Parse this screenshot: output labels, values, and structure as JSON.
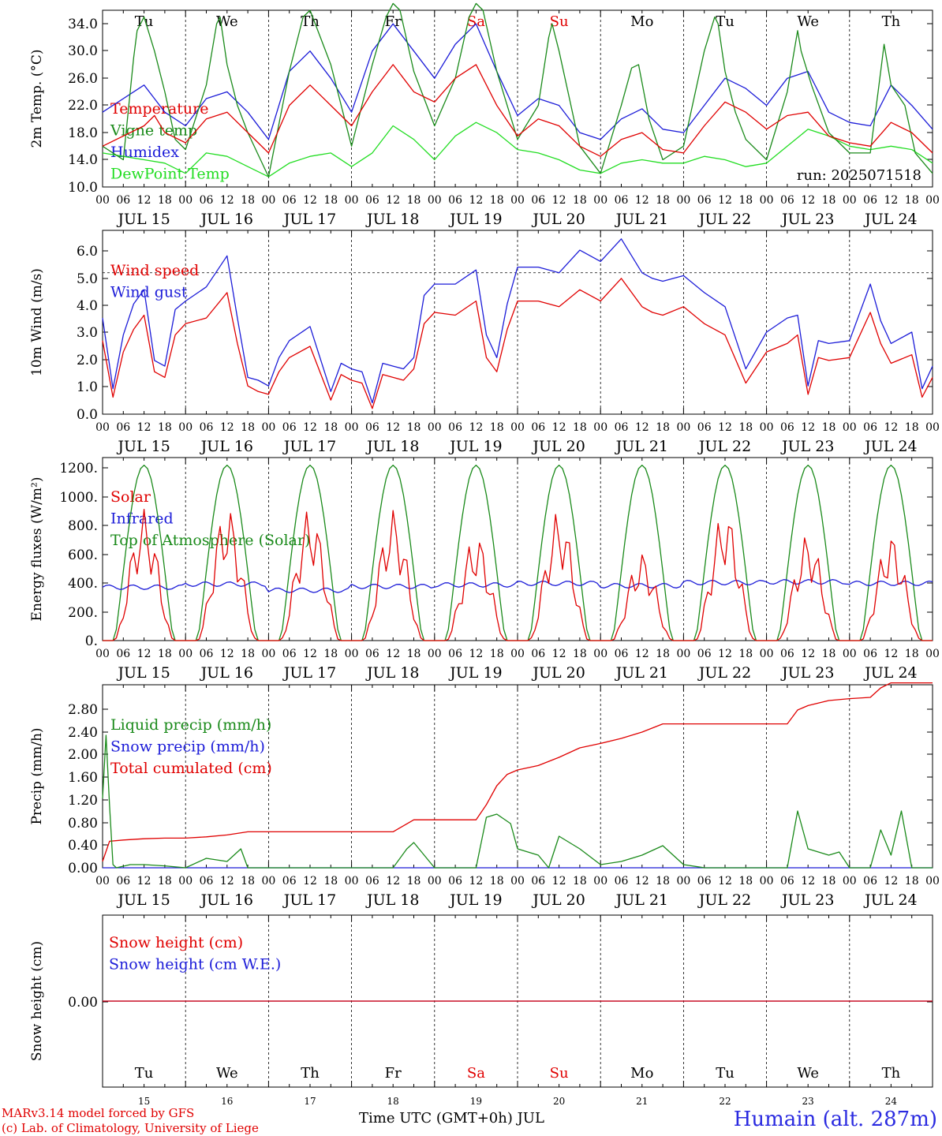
{
  "colors": {
    "red": "#e00000",
    "green": "#1a8a1a",
    "blue": "#1c1cd8",
    "lightgreen": "#22dd22",
    "station": "#2a2ae0",
    "weekend": "#e00000"
  },
  "footer": {
    "credit_line1": "MARv3.14 model forced by GFS",
    "credit_line2": "(c) Lab. of Climatology, University of Liege",
    "xaxis_title": "Time UTC (GMT+0h) JUL",
    "station": "Humain (alt. 287m)"
  },
  "chart_data": [
    {
      "type": "line",
      "panel": "temperature",
      "ylabel": "2m Temp. (°C)",
      "ylim": [
        10,
        36
      ],
      "yticks": [
        "10.0",
        "14.0",
        "18.0",
        "22.0",
        "26.0",
        "30.0",
        "34.0"
      ],
      "run_label": "run: 2025071518",
      "days": [
        "Tu",
        "We",
        "Th",
        "Fr",
        "Sa",
        "Su",
        "Mo",
        "Tu",
        "We",
        "Th"
      ],
      "weekend_days": [
        "Sa",
        "Su"
      ],
      "dates": [
        "JUL 15",
        "JUL 16",
        "JUL 17",
        "JUL 18",
        "JUL 19",
        "JUL 20",
        "JUL 21",
        "JUL 22",
        "JUL 23",
        "JUL 24"
      ],
      "hours": [
        "00",
        "06",
        "12",
        "18"
      ],
      "hour_last": "00",
      "grid": "vertical dotted day separators",
      "series": [
        {
          "name": "Temperature",
          "color": "red",
          "x": [
            0,
            12,
            15,
            18,
            24,
            30,
            36,
            42,
            48,
            54,
            60,
            66,
            72,
            78,
            84,
            90,
            96,
            102,
            108,
            114,
            120,
            126,
            132,
            138,
            144,
            150,
            156,
            162,
            168,
            174,
            180,
            186,
            192,
            198,
            204,
            210,
            216,
            222,
            228,
            234,
            240
          ],
          "values": [
            16.0,
            19.0,
            20.5,
            18.0,
            16.5,
            20.0,
            21.0,
            18.0,
            15.0,
            22.0,
            25.0,
            22.0,
            19.0,
            24.0,
            28.0,
            24.0,
            22.5,
            26.0,
            28.0,
            22.0,
            17.5,
            20.0,
            19.0,
            16.0,
            14.5,
            17.0,
            18.0,
            15.5,
            15.0,
            19.0,
            22.5,
            21.0,
            18.5,
            20.5,
            21.0,
            17.5,
            16.5,
            16.0,
            19.5,
            18.0,
            15.0
          ]
        },
        {
          "name": "Vigne temp",
          "color": "green",
          "x": [
            0,
            6,
            9,
            10,
            12,
            15,
            18,
            21,
            24,
            30,
            33,
            34,
            36,
            39,
            42,
            48,
            54,
            58,
            60,
            66,
            72,
            78,
            82,
            84,
            86,
            90,
            96,
            102,
            106,
            108,
            110,
            114,
            120,
            126,
            129,
            130,
            132,
            135,
            138,
            144,
            150,
            153,
            155,
            158,
            162,
            168,
            174,
            177,
            178,
            180,
            183,
            186,
            192,
            198,
            201,
            202,
            205,
            210,
            216,
            222,
            225,
            226,
            228,
            232,
            235,
            240
          ],
          "values": [
            16.0,
            14.0,
            29.0,
            33.0,
            35.0,
            30.0,
            24.0,
            17.0,
            15.5,
            25.0,
            34.0,
            35.0,
            28.0,
            22.0,
            18.0,
            11.5,
            27.0,
            35.0,
            36.0,
            28.0,
            16.0,
            28.0,
            35.0,
            37.0,
            36.0,
            27.0,
            19.0,
            26.0,
            35.0,
            37.0,
            36.0,
            27.0,
            17.0,
            22.0,
            32.0,
            34.0,
            30.0,
            23.0,
            16.0,
            12.0,
            22.0,
            27.5,
            28.0,
            20.0,
            14.0,
            16.0,
            30.0,
            35.0,
            34.0,
            27.0,
            21.0,
            17.0,
            14.0,
            24.0,
            33.0,
            30.0,
            25.0,
            18.0,
            15.0,
            15.0,
            27.0,
            31.0,
            25.0,
            22.0,
            15.0,
            12.0
          ]
        },
        {
          "name": "Humidex",
          "color": "blue",
          "x": [
            0,
            12,
            15,
            18,
            24,
            30,
            36,
            42,
            48,
            54,
            60,
            66,
            72,
            78,
            84,
            90,
            96,
            102,
            108,
            114,
            120,
            126,
            132,
            138,
            144,
            150,
            156,
            162,
            168,
            174,
            180,
            186,
            192,
            198,
            204,
            210,
            216,
            222,
            228,
            234,
            240
          ],
          "values": [
            21.0,
            25.0,
            23.0,
            21.0,
            19.0,
            23.0,
            24.0,
            21.0,
            17.0,
            27.0,
            30.0,
            26.0,
            21.0,
            30.0,
            34.0,
            30.0,
            26.0,
            31.0,
            34.0,
            27.0,
            20.5,
            23.0,
            22.0,
            18.0,
            17.0,
            20.0,
            21.5,
            18.5,
            18.0,
            22.0,
            26.0,
            24.5,
            22.0,
            26.0,
            27.0,
            21.0,
            19.5,
            19.0,
            25.0,
            22.0,
            18.5
          ]
        },
        {
          "name": "DewPoint Temp",
          "color": "lightgreen",
          "x": [
            0,
            6,
            12,
            18,
            24,
            30,
            36,
            42,
            48,
            54,
            60,
            66,
            72,
            78,
            84,
            90,
            96,
            102,
            108,
            114,
            120,
            126,
            132,
            138,
            144,
            150,
            156,
            162,
            168,
            174,
            180,
            186,
            192,
            198,
            204,
            210,
            216,
            222,
            228,
            234,
            240
          ],
          "values": [
            15.0,
            14.5,
            14.0,
            13.5,
            12.0,
            15.0,
            14.5,
            13.0,
            11.5,
            13.5,
            14.5,
            15.0,
            13.0,
            15.0,
            19.0,
            17.0,
            14.0,
            17.5,
            19.5,
            18.0,
            15.5,
            15.0,
            14.0,
            12.5,
            12.0,
            13.5,
            14.0,
            13.5,
            13.5,
            14.5,
            14.0,
            13.0,
            13.5,
            16.0,
            18.5,
            17.5,
            16.0,
            15.5,
            16.0,
            15.5,
            13.5
          ]
        }
      ]
    },
    {
      "type": "line",
      "panel": "wind",
      "ylabel": "10m Wind (m/s)",
      "ylim": [
        0,
        6.5
      ],
      "yticks": [
        "0.0",
        "1.0",
        "2.0",
        "3.0",
        "4.0",
        "5.0",
        "6.0"
      ],
      "ref_line": 5.0,
      "series": [
        {
          "name": "Wind speed",
          "color": "red",
          "x": [
            0,
            3,
            6,
            9,
            12,
            15,
            18,
            21,
            24,
            30,
            36,
            39,
            42,
            45,
            48,
            51,
            54,
            60,
            66,
            69,
            72,
            75,
            78,
            81,
            84,
            87,
            90,
            93,
            96,
            102,
            108,
            111,
            114,
            117,
            120,
            126,
            132,
            138,
            144,
            150,
            156,
            159,
            162,
            168,
            174,
            180,
            186,
            192,
            198,
            201,
            204,
            207,
            210,
            216,
            222,
            225,
            228,
            234,
            237,
            240
          ],
          "values": [
            2.6,
            0.6,
            2.2,
            3.0,
            3.5,
            1.5,
            1.3,
            2.8,
            3.2,
            3.4,
            4.3,
            2.5,
            1.0,
            0.8,
            0.7,
            1.5,
            2.0,
            2.4,
            0.5,
            1.4,
            1.2,
            1.1,
            0.2,
            1.4,
            1.3,
            1.2,
            1.6,
            3.2,
            3.6,
            3.5,
            4.0,
            2.0,
            1.5,
            3.0,
            4.0,
            4.0,
            3.8,
            4.4,
            4.0,
            4.8,
            3.8,
            3.6,
            3.5,
            3.8,
            3.2,
            2.8,
            1.1,
            2.2,
            2.5,
            2.8,
            0.7,
            2.0,
            1.9,
            2.0,
            3.6,
            2.5,
            1.8,
            2.1,
            0.6,
            1.3
          ]
        },
        {
          "name": "Wind gust",
          "color": "blue",
          "x": [
            0,
            3,
            6,
            9,
            12,
            15,
            18,
            21,
            24,
            30,
            36,
            39,
            42,
            45,
            48,
            51,
            54,
            60,
            66,
            69,
            72,
            75,
            78,
            81,
            84,
            87,
            90,
            93,
            96,
            102,
            108,
            111,
            114,
            117,
            120,
            126,
            132,
            138,
            144,
            150,
            156,
            159,
            162,
            168,
            174,
            180,
            186,
            192,
            198,
            201,
            204,
            207,
            210,
            216,
            222,
            225,
            228,
            234,
            237,
            240
          ],
          "values": [
            3.4,
            0.9,
            2.8,
            3.9,
            4.4,
            1.9,
            1.7,
            3.7,
            4.0,
            4.5,
            5.6,
            3.4,
            1.3,
            1.2,
            1.0,
            2.0,
            2.6,
            3.1,
            0.8,
            1.8,
            1.6,
            1.5,
            0.4,
            1.8,
            1.7,
            1.6,
            2.0,
            4.2,
            4.6,
            4.6,
            5.1,
            2.8,
            2.0,
            3.9,
            5.2,
            5.2,
            5.0,
            5.8,
            5.4,
            6.2,
            5.0,
            4.8,
            4.7,
            4.9,
            4.3,
            3.8,
            1.6,
            2.9,
            3.4,
            3.5,
            1.0,
            2.6,
            2.5,
            2.6,
            4.6,
            3.3,
            2.5,
            2.9,
            0.9,
            1.7
          ]
        }
      ]
    },
    {
      "type": "line",
      "panel": "energy",
      "ylabel": "Energy fluxes (W/m²)",
      "ylim": [
        0,
        1200
      ],
      "yticks": [
        "0.",
        "200.",
        "400.",
        "600.",
        "800.",
        "1000.",
        "1200."
      ],
      "series": [
        {
          "name": "Solar",
          "color": "red",
          "daily_peaks": [
            860,
            880,
            870,
            860,
            700,
            850,
            580,
            860,
            700,
            700
          ]
        },
        {
          "name": "Infrared",
          "color": "blue",
          "values_per_day": [
            350,
            370,
            330,
            355,
            365,
            375,
            360,
            380,
            385,
            375
          ]
        },
        {
          "name": "Top of Atmosphere (Solar)",
          "color": "green",
          "daily_peak": 1150
        }
      ]
    },
    {
      "type": "line",
      "panel": "precip",
      "ylabel": "Precip (mm/h)",
      "ylim": [
        0,
        2.9
      ],
      "yticks": [
        "0.00",
        "0.40",
        "0.80",
        "1.20",
        "1.60",
        "2.00",
        "2.40",
        "2.80"
      ],
      "series": [
        {
          "name": "Liquid precip (mm/h)",
          "color": "green",
          "x": [
            0,
            1,
            2,
            3,
            4,
            8,
            12,
            18,
            24,
            30,
            36,
            40,
            42,
            48,
            84,
            88,
            90,
            96,
            108,
            111,
            114,
            118,
            120,
            126,
            129,
            132,
            138,
            144,
            150,
            156,
            162,
            168,
            174,
            177,
            180,
            184,
            186,
            192,
            198,
            201,
            204,
            210,
            213,
            216,
            222,
            225,
            228,
            231,
            234,
            240
          ],
          "values": [
            1.1,
            2.1,
            1.0,
            0.05,
            0.0,
            0.05,
            0.05,
            0.03,
            0.0,
            0.15,
            0.1,
            0.3,
            0.0,
            0.0,
            0.0,
            0.3,
            0.4,
            0.0,
            0.0,
            0.8,
            0.85,
            0.7,
            0.3,
            0.2,
            0.0,
            0.5,
            0.3,
            0.05,
            0.1,
            0.2,
            0.35,
            0.05,
            0.0,
            0.0,
            0.0,
            0.0,
            0.0,
            0.0,
            0.0,
            0.9,
            0.3,
            0.2,
            0.25,
            0.0,
            0.0,
            0.6,
            0.2,
            0.9,
            0.0,
            0.0
          ]
        },
        {
          "name": "Snow precip (mm/h)",
          "color": "blue",
          "x": [
            0,
            240
          ],
          "values": [
            0,
            0
          ]
        },
        {
          "name": "Total cumulated (cm)",
          "color": "red",
          "x": [
            0,
            2,
            6,
            12,
            18,
            24,
            30,
            36,
            42,
            48,
            60,
            72,
            84,
            90,
            96,
            108,
            111,
            114,
            117,
            120,
            126,
            132,
            138,
            144,
            150,
            156,
            162,
            168,
            174,
            180,
            186,
            192,
            198,
            201,
            204,
            210,
            216,
            222,
            225,
            228,
            240
          ],
          "values": [
            0.1,
            0.42,
            0.44,
            0.46,
            0.47,
            0.47,
            0.49,
            0.52,
            0.57,
            0.57,
            0.57,
            0.57,
            0.57,
            0.76,
            0.76,
            0.76,
            1.0,
            1.3,
            1.48,
            1.55,
            1.62,
            1.75,
            1.9,
            1.97,
            2.05,
            2.15,
            2.28,
            2.28,
            2.28,
            2.28,
            2.28,
            2.28,
            2.28,
            2.5,
            2.57,
            2.65,
            2.68,
            2.7,
            2.85,
            2.93,
            2.93
          ]
        }
      ]
    },
    {
      "type": "line",
      "panel": "snow",
      "ylabel": "Snow height (cm)",
      "ylim": [
        -1,
        1
      ],
      "yticks": [
        "0.00"
      ],
      "day_numbers": [
        "15",
        "16",
        "17",
        "18",
        "19",
        "20",
        "21",
        "22",
        "23",
        "24"
      ],
      "series": [
        {
          "name": "Snow height (cm)",
          "color": "red",
          "x": [
            0,
            240
          ],
          "values": [
            0,
            0
          ]
        },
        {
          "name": "Snow height (cm W.E.)",
          "color": "blue",
          "x": [
            0,
            240
          ],
          "values": [
            0,
            0
          ]
        }
      ]
    }
  ]
}
